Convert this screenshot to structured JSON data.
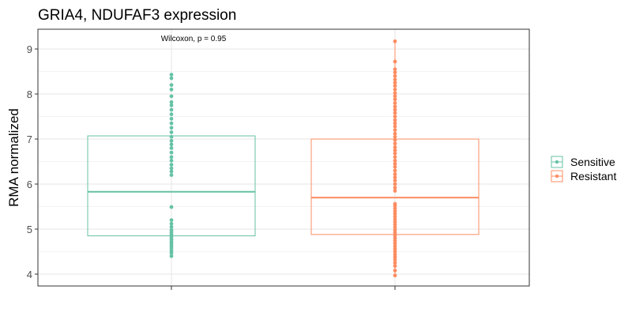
{
  "chart_data": {
    "type": "box",
    "title": "GRIA4, NDUFAF3 expression",
    "xlabel": "",
    "ylabel": "RMA normalized",
    "ylim": [
      3.8,
      9.3
    ],
    "yticks": [
      4,
      5,
      6,
      7,
      8,
      9
    ],
    "annotation": "Wilcoxon, p = 0.95",
    "legend": {
      "position": "right",
      "entries": [
        "Sensitive",
        "Resistant"
      ]
    },
    "grid": true,
    "series": [
      {
        "name": "Sensitive",
        "color": "#66c2a5",
        "box": {
          "q1": 4.85,
          "median": 5.83,
          "q3": 7.07
        },
        "points": [
          4.4,
          4.47,
          4.52,
          4.58,
          4.63,
          4.68,
          4.72,
          4.77,
          4.82,
          4.88,
          4.93,
          4.98,
          5.05,
          5.12,
          5.2,
          5.49,
          6.2,
          6.28,
          6.35,
          6.43,
          6.52,
          6.6,
          6.7,
          6.8,
          6.88,
          6.96,
          7.05,
          7.15,
          7.25,
          7.35,
          7.45,
          7.55,
          7.65,
          7.75,
          7.82,
          7.95,
          8.1,
          8.2,
          8.35,
          8.43
        ]
      },
      {
        "name": "Resistant",
        "color": "#fc8d62",
        "box": {
          "q1": 4.88,
          "median": 5.7,
          "q3": 7.0
        },
        "whisker": {
          "low": 3.97,
          "high": 9.17
        },
        "points": [
          3.97,
          4.08,
          4.18,
          4.25,
          4.32,
          4.38,
          4.44,
          4.5,
          4.56,
          4.62,
          4.68,
          4.74,
          4.8,
          4.86,
          4.92,
          4.98,
          5.04,
          5.1,
          5.16,
          5.22,
          5.28,
          5.34,
          5.4,
          5.46,
          5.52,
          5.56,
          5.85,
          5.92,
          6.0,
          6.08,
          6.15,
          6.22,
          6.3,
          6.38,
          6.45,
          6.52,
          6.6,
          6.68,
          6.75,
          6.82,
          6.9,
          6.98,
          7.05,
          7.12,
          7.2,
          7.28,
          7.35,
          7.42,
          7.5,
          7.58,
          7.65,
          7.72,
          7.8,
          7.88,
          7.95,
          8.02,
          8.1,
          8.18,
          8.25,
          8.32,
          8.4,
          8.48,
          8.55,
          8.72,
          9.17
        ]
      }
    ]
  }
}
